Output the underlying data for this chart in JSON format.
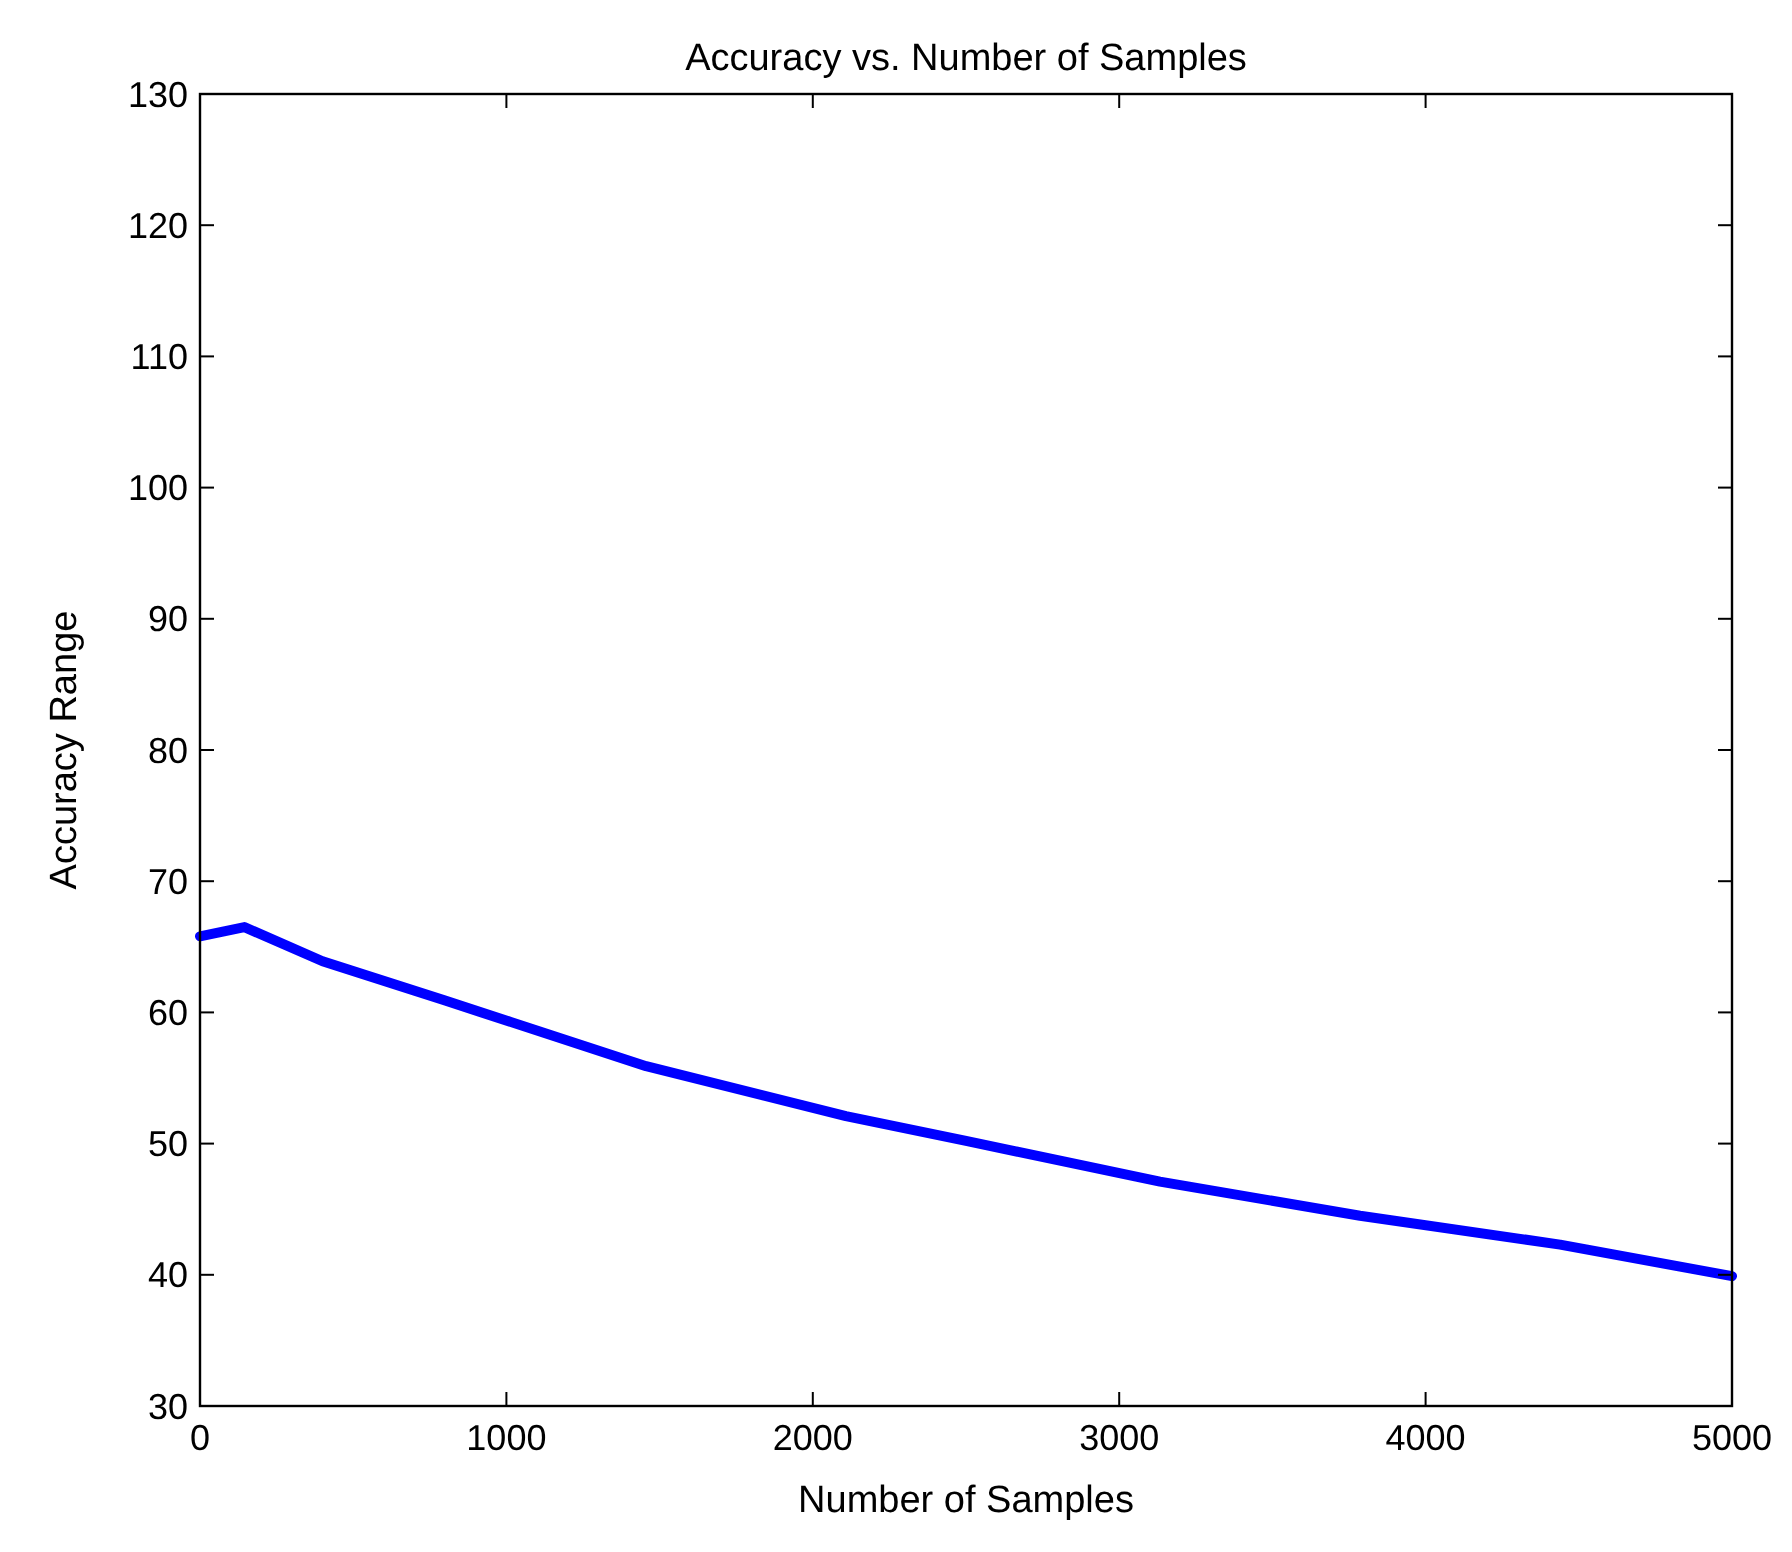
{
  "chart_data": {
    "type": "line",
    "title": "Accuracy vs. Number of Samples",
    "xlabel": "Number of Samples",
    "ylabel": "Accuracy Range",
    "x": [
      0,
      145,
      400,
      800,
      1456,
      2108,
      2500,
      3133,
      3786,
      4439,
      5000
    ],
    "series": [
      {
        "color": "#0000ff",
        "values": [
          65.8,
          66.5,
          63.9,
          60.9,
          55.9,
          52.1,
          50.2,
          47.1,
          44.5,
          42.3,
          39.9
        ]
      }
    ],
    "xlim": [
      0,
      5000
    ],
    "xticks": [
      0,
      1000,
      2000,
      3000,
      4000,
      5000
    ],
    "ylim": [
      30,
      130
    ],
    "yticks": [
      30,
      40,
      50,
      60,
      70,
      80,
      90,
      100,
      110,
      120,
      130
    ],
    "grid": false,
    "marker": "none",
    "line_style": "solid"
  }
}
